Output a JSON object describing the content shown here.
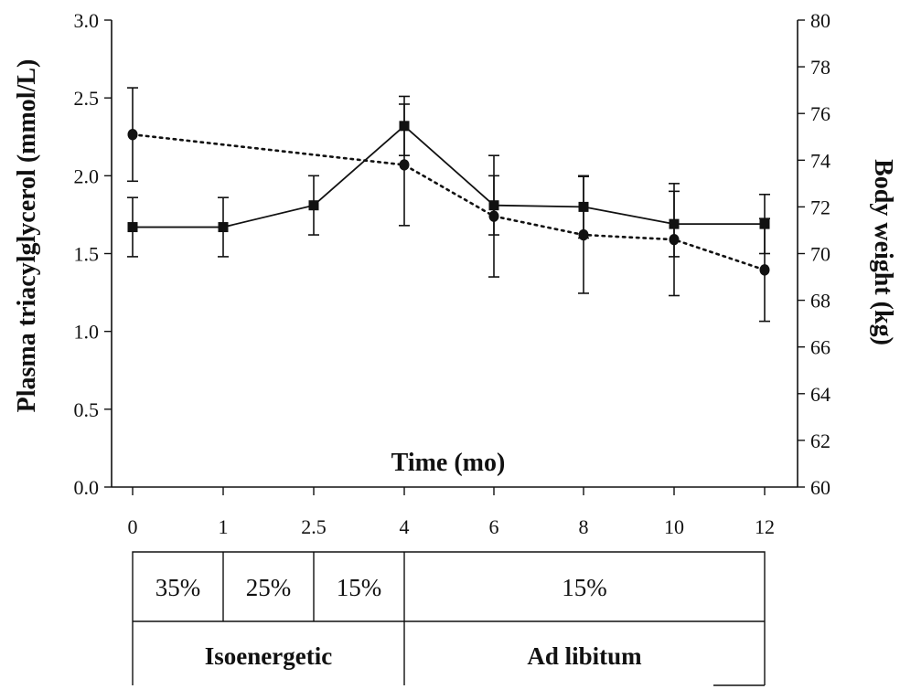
{
  "chart_data": {
    "type": "line",
    "xlabel": "Time (mo)",
    "ylabel_left": "Plasma triacylglycerol (mmol/L)",
    "ylabel_right": "Body weight (kg)",
    "x_categories": [
      "0",
      "1",
      "2.5",
      "4",
      "6",
      "8",
      "10",
      "12"
    ],
    "y_left_ticks": [
      "0.0",
      "0.5",
      "1.0",
      "1.5",
      "2.0",
      "2.5",
      "3.0"
    ],
    "y_left_range": [
      0,
      3.0
    ],
    "y_right_ticks": [
      "60",
      "62",
      "64",
      "66",
      "68",
      "70",
      "72",
      "74",
      "76",
      "78",
      "80"
    ],
    "y_right_range": [
      60,
      80
    ],
    "series": [
      {
        "axis": "left",
        "marker": "square",
        "line_style": "solid",
        "x_index": [
          0,
          1,
          2,
          3,
          4,
          5,
          6,
          7
        ],
        "values": [
          1.67,
          1.67,
          1.81,
          2.32,
          1.81,
          1.8,
          1.69,
          1.69
        ],
        "error": [
          0.19,
          0.19,
          0.19,
          0.19,
          0.19,
          0.2,
          0.21,
          0.19
        ]
      },
      {
        "axis": "right",
        "marker": "circle",
        "line_style": "dotted",
        "x_index": [
          0,
          3,
          4,
          5,
          6,
          7
        ],
        "values": [
          75.1,
          73.8,
          71.6,
          70.8,
          70.6,
          69.3
        ],
        "error": [
          2.0,
          2.6,
          2.6,
          2.5,
          2.4,
          2.2
        ]
      }
    ],
    "diet_table": {
      "fat_row": [
        {
          "label": "35%",
          "from": 0,
          "to": 1
        },
        {
          "label": "25%",
          "from": 1,
          "to": 2
        },
        {
          "label": "15%",
          "from": 2,
          "to": 3
        },
        {
          "label": "15%",
          "from": 3,
          "to": 7
        }
      ],
      "energy_row": [
        {
          "label": "Isoenergetic",
          "from": 0,
          "to": 3
        },
        {
          "label": "Ad libitum",
          "from": 3,
          "to": 7
        }
      ]
    },
    "grid": false,
    "legend": "none"
  }
}
